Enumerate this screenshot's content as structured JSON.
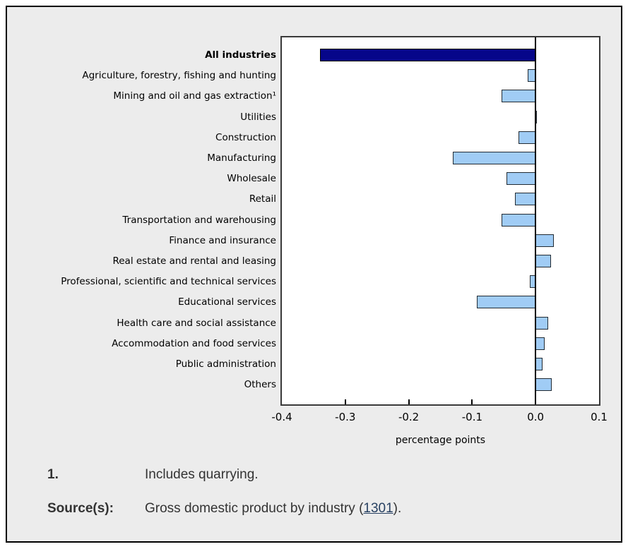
{
  "chart_data": {
    "type": "bar",
    "orientation": "horizontal",
    "title": "",
    "xlabel": "percentage points",
    "ylabel": "",
    "xlim": [
      -0.4,
      0.1
    ],
    "x_ticks": [
      -0.4,
      -0.3,
      -0.2,
      -0.1,
      0.0,
      0.1
    ],
    "x_tick_labels": [
      "-0.4",
      "-0.3",
      "-0.2",
      "-0.1",
      "0.0",
      "0.1"
    ],
    "grid": false,
    "legend": "none",
    "highlight_category": "All industries",
    "categories": [
      "All industries",
      "Agriculture, forestry, fishing and hunting",
      "Mining and oil and gas extraction¹",
      "Utilities",
      "Construction",
      "Manufacturing",
      "Wholesale",
      "Retail",
      "Transportation and warehousing",
      "Finance and insurance",
      "Real estate and rental and leasing",
      "Professional, scientific and technical services",
      "Educational services",
      "Health care and social assistance",
      "Accommodation and food services",
      "Public administration",
      "Others"
    ],
    "values": [
      -0.34,
      -0.012,
      -0.054,
      0.002,
      -0.027,
      -0.13,
      -0.046,
      -0.032,
      -0.054,
      0.029,
      0.024,
      -0.009,
      -0.093,
      0.02,
      0.014,
      0.011,
      0.025
    ]
  },
  "colors": {
    "page_background": "#ececec",
    "frame_border": "#000000",
    "plot_border": "#3a3a3a",
    "bar_fill": "#a0ccf5",
    "bar_border": "#222b33",
    "highlight_bar_fill": "#06068a",
    "footer_text": "#333333",
    "link": "#284162"
  },
  "footnotes": {
    "note_number": "1.",
    "note_text": "Includes quarrying.",
    "source_label": "Source(s):",
    "source_text_before_link": "Gross domestic product by industry (",
    "source_link": "1301",
    "source_text_after_link": ")."
  }
}
